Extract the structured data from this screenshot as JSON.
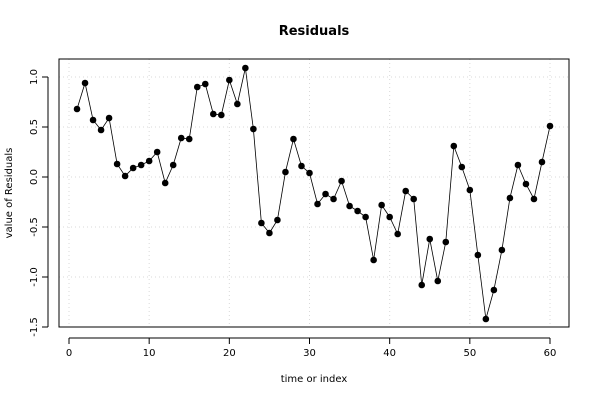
{
  "chart_data": {
    "type": "line",
    "title": "Residuals",
    "xlabel": "time or index",
    "ylabel": "value of Residuals",
    "xlim": [
      0,
      61
    ],
    "ylim": [
      -1.5,
      1.15
    ],
    "x_ticks": [
      0,
      10,
      20,
      30,
      40,
      50,
      60
    ],
    "y_ticks": [
      -1.5,
      -1.0,
      -0.5,
      0.0,
      0.5,
      1.0
    ],
    "y_tick_labels": [
      "-1.5",
      "-1.0",
      "-0.5",
      "0.0",
      "0.5",
      "1.0"
    ],
    "x_tick_labels": [
      "0",
      "10",
      "20",
      "30",
      "40",
      "50",
      "60"
    ],
    "grid": true,
    "series": [
      {
        "x": [
          1,
          2,
          3,
          4,
          5,
          6,
          7,
          8,
          9,
          10,
          11,
          12,
          13,
          14,
          15,
          16,
          17,
          18,
          19,
          20,
          21,
          22,
          23,
          24,
          25,
          26,
          27,
          28,
          29,
          30,
          31,
          32,
          33,
          34,
          35,
          36,
          37,
          38,
          39,
          40,
          41,
          42,
          43,
          44,
          45,
          46,
          47,
          48,
          49,
          50,
          51,
          52,
          53,
          54,
          55,
          56,
          57,
          58,
          59,
          60
        ],
        "values": [
          0.68,
          0.94,
          0.57,
          0.47,
          0.59,
          0.13,
          0.01,
          0.09,
          0.12,
          0.16,
          0.25,
          -0.06,
          0.12,
          0.39,
          0.38,
          0.9,
          0.93,
          0.63,
          0.62,
          0.97,
          0.73,
          1.09,
          0.48,
          -0.46,
          -0.56,
          -0.43,
          0.05,
          0.38,
          0.11,
          0.04,
          -0.27,
          -0.17,
          -0.22,
          -0.04,
          -0.29,
          -0.34,
          -0.4,
          -0.83,
          -0.28,
          -0.4,
          -0.57,
          -0.14,
          -0.22,
          -1.08,
          -0.62,
          -1.04,
          -0.65,
          0.31,
          0.1,
          -0.13,
          -0.78,
          -1.42,
          -1.13,
          -0.73,
          -0.21,
          0.12,
          -0.07,
          -0.22,
          0.15,
          0.51
        ]
      }
    ]
  }
}
